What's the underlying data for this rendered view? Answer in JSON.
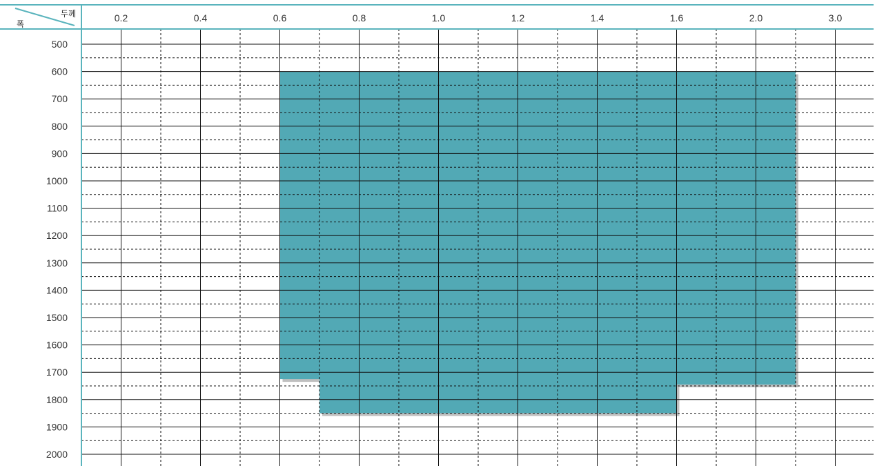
{
  "chart_data": {
    "type": "heatmap",
    "corner_header": {
      "column_axis_label": "두께",
      "row_axis_label": "폭"
    },
    "x_tick_labels": [
      "0.2",
      "0.4",
      "0.6",
      "0.8",
      "1.0",
      "1.2",
      "1.4",
      "1.6",
      "2.0",
      "3.0"
    ],
    "y_tick_labels": [
      "500",
      "600",
      "700",
      "800",
      "900",
      "1000",
      "1100",
      "1200",
      "1300",
      "1400",
      "1500",
      "1600",
      "1700",
      "1800",
      "1900",
      "2000"
    ],
    "available_region": [
      {
        "thickness_from": "0.6",
        "thickness_to": "0.7",
        "width_from": 600,
        "width_to": 1725
      },
      {
        "thickness_from": "0.7",
        "thickness_to": "1.6",
        "width_from": 600,
        "width_to": 1850
      },
      {
        "thickness_from": "1.6",
        "thickness_to": "2.5",
        "width_from": 600,
        "width_to": 1745
      }
    ],
    "colors": {
      "fill": "#52a9b5",
      "axis": "#5ab4bd",
      "grid": "#111111",
      "shadow": "#bfbfbf"
    }
  }
}
